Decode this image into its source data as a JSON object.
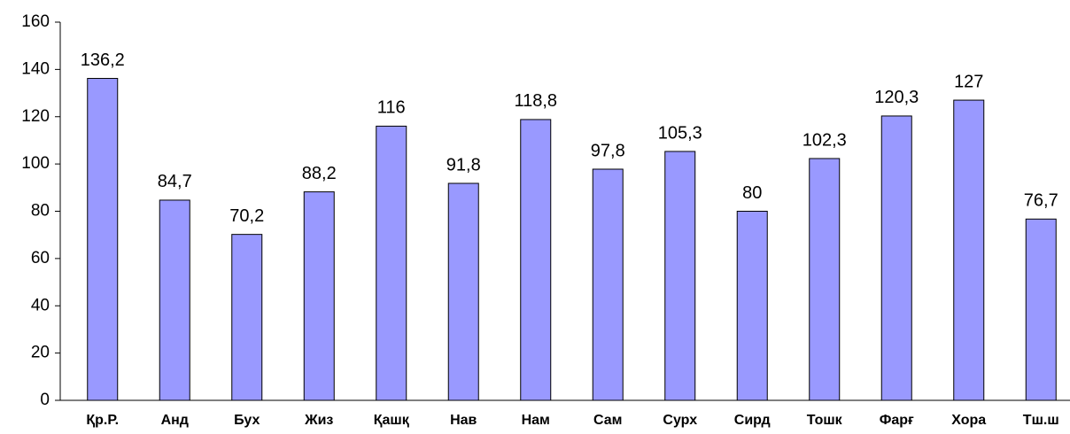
{
  "chart_data": {
    "type": "bar",
    "categories": [
      "Қр.Р.",
      "Анд",
      "Бух",
      "Жиз",
      "Қашқ",
      "Нав",
      "Нам",
      "Сам",
      "Сурх",
      "Сирд",
      "Тошк",
      "Фарғ",
      "Хора",
      "Тш.ш"
    ],
    "values": [
      136.2,
      84.7,
      70.2,
      88.2,
      116,
      91.8,
      118.8,
      97.8,
      105.3,
      80,
      102.3,
      120.3,
      127,
      76.7
    ],
    "value_labels": [
      "136,2",
      "84,7",
      "70,2",
      "88,2",
      "116",
      "91,8",
      "118,8",
      "97,8",
      "105,3",
      "80",
      "102,3",
      "120,3",
      "127",
      "76,7"
    ],
    "color": "#9999ff",
    "ylim": [
      0,
      160
    ],
    "yticks": [
      0,
      20,
      40,
      60,
      80,
      100,
      120,
      140,
      160
    ],
    "grid": false
  }
}
